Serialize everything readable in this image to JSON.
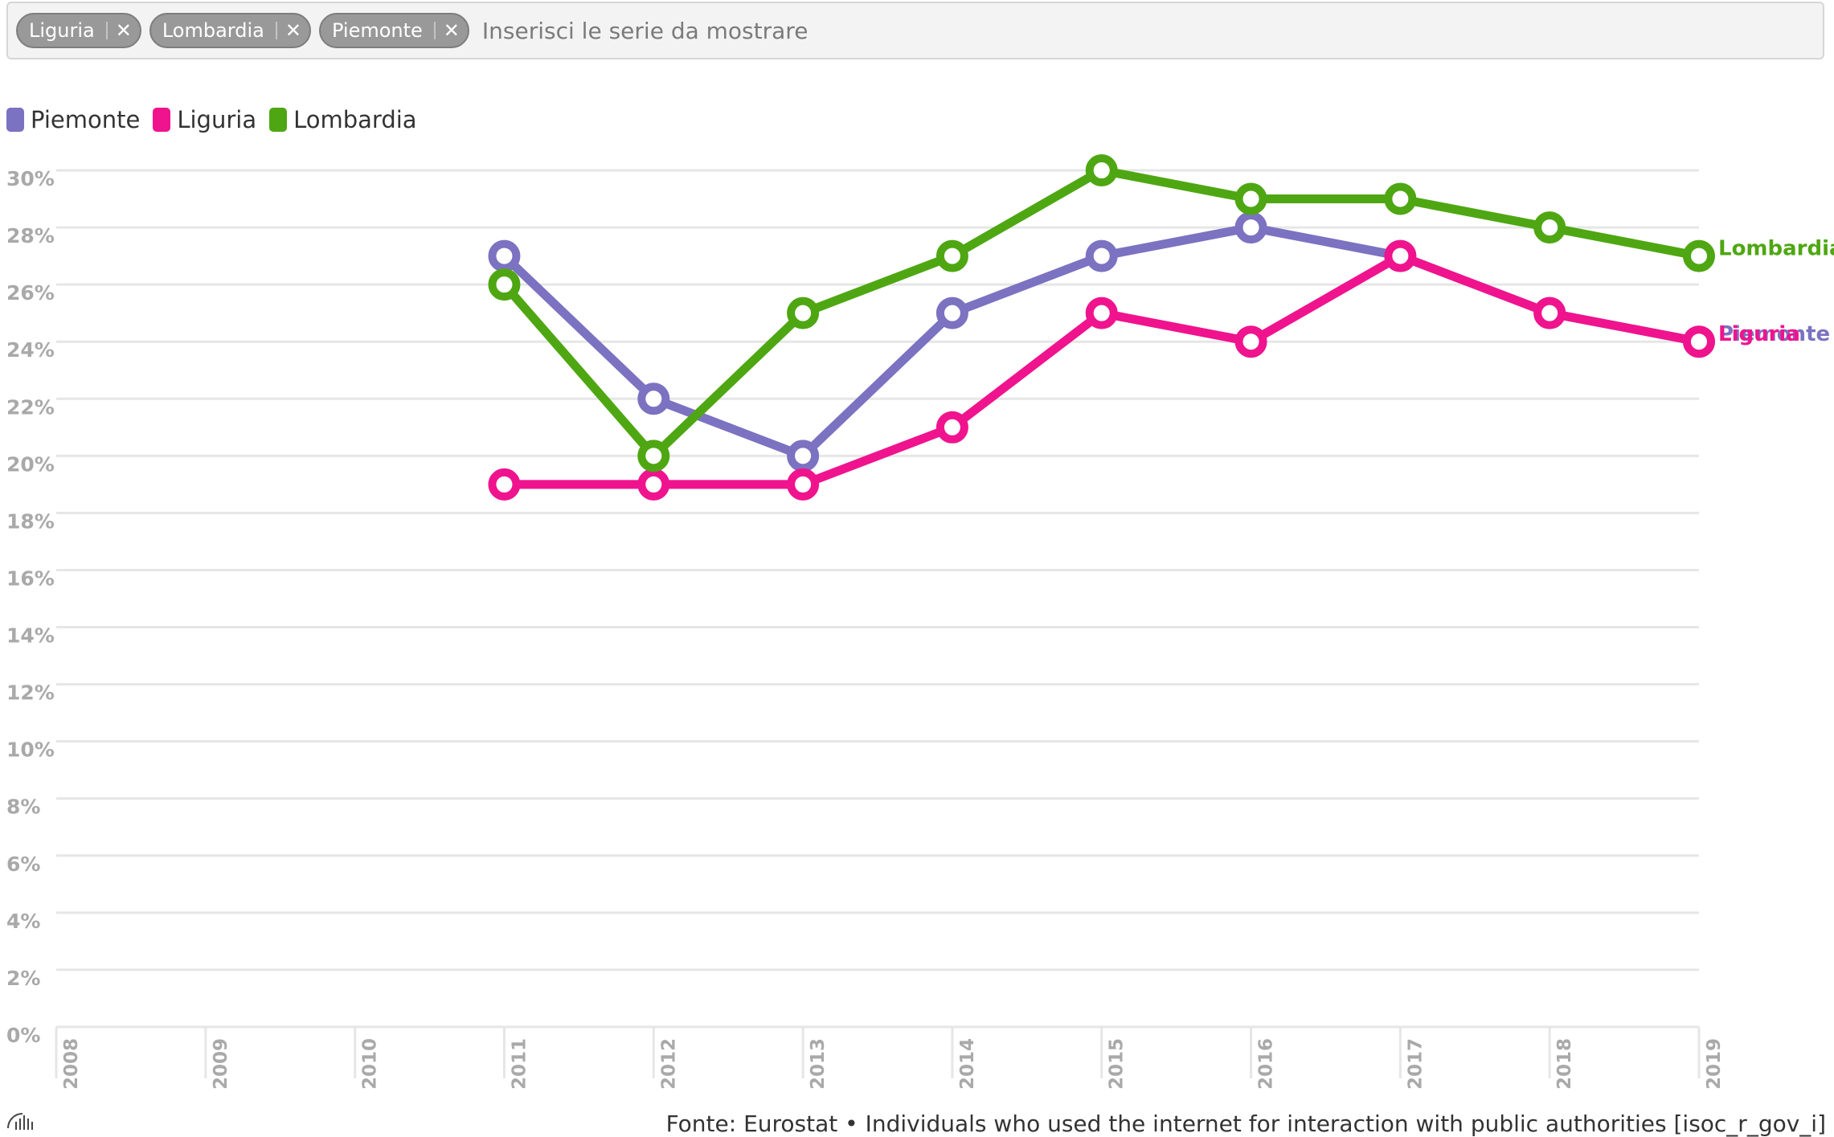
{
  "selector": {
    "chips": [
      {
        "label": "Liguria",
        "remove": "✕"
      },
      {
        "label": "Lombardia",
        "remove": "✕"
      },
      {
        "label": "Piemonte",
        "remove": "✕"
      }
    ],
    "placeholder": "Inserisci le serie da mostrare"
  },
  "legend": [
    {
      "label": "Piemonte",
      "color": "#7b72c1"
    },
    {
      "label": "Liguria",
      "color": "#f0138e"
    },
    {
      "label": "Lombardia",
      "color": "#4ea712"
    }
  ],
  "chart_data": {
    "type": "line",
    "x": [
      2008,
      2009,
      2010,
      2011,
      2012,
      2013,
      2014,
      2015,
      2016,
      2017,
      2018,
      2019
    ],
    "ylim": [
      0,
      30
    ],
    "yticks": [
      "0%",
      "2%",
      "4%",
      "6%",
      "8%",
      "10%",
      "12%",
      "14%",
      "16%",
      "18%",
      "20%",
      "22%",
      "24%",
      "26%",
      "28%",
      "30%"
    ],
    "xticks": [
      "2008",
      "2009",
      "2010",
      "2011",
      "2012",
      "2013",
      "2014",
      "2015",
      "2016",
      "2017",
      "2018",
      "2019"
    ],
    "grid": true,
    "series": [
      {
        "name": "Piemonte",
        "color": "#7b72c1",
        "values": [
          null,
          null,
          null,
          27,
          22,
          20,
          25,
          27,
          28,
          27,
          25,
          24
        ]
      },
      {
        "name": "Liguria",
        "color": "#f0138e",
        "values": [
          null,
          null,
          null,
          19,
          19,
          19,
          21,
          25,
          24,
          27,
          25,
          24
        ]
      },
      {
        "name": "Lombardia",
        "color": "#4ea712",
        "values": [
          null,
          null,
          null,
          26,
          20,
          25,
          27,
          30,
          29,
          29,
          28,
          27
        ]
      }
    ]
  },
  "footer": {
    "source": "Fonte: Eurostat • Individuals who used the internet for interaction with public authorities [isoc_r_gov_i]"
  }
}
